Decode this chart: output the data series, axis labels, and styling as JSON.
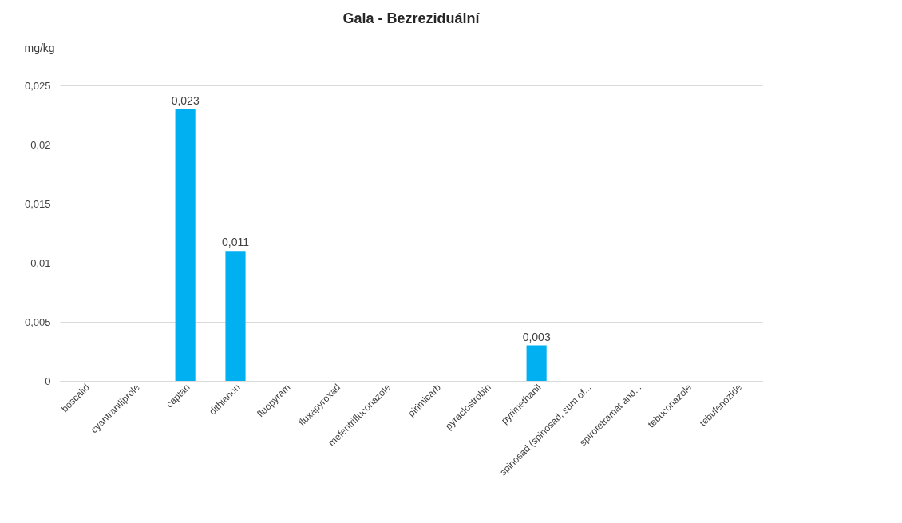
{
  "chart_data": {
    "type": "bar",
    "title": "Gala - Bezreziduální",
    "ylabel": "mg/kg",
    "categories": [
      "boscalid",
      "cyantraniliprole",
      "captan",
      "dithianon",
      "fluopyram",
      "fluxapyroxad",
      "mefentrifluconazole",
      "pirimicarb",
      "pyraclostrobin",
      "pyrimethanil",
      "spinosad (spinosad, sum of...",
      "spirotetramat and...",
      "tebuconazole",
      "tebufenozide"
    ],
    "values": [
      0,
      0,
      0.023,
      0.011,
      0,
      0,
      0,
      0,
      0,
      0.003,
      0,
      0,
      0,
      0
    ],
    "value_labels": [
      null,
      null,
      "0,023",
      "0,011",
      null,
      null,
      null,
      null,
      null,
      "0,003",
      null,
      null,
      null,
      null
    ],
    "color": "#00b0f0",
    "ylim": [
      0,
      0.025
    ],
    "yticks": [
      0,
      {
        "value": 0.005,
        "label": "0,005"
      },
      {
        "value": 0.01,
        "label": "0,01"
      },
      {
        "value": 0.015,
        "label": "0,015"
      },
      {
        "value": 0.02,
        "label": "0,02"
      },
      {
        "value": 0.025,
        "label": "0,025"
      }
    ],
    "grid": "y"
  }
}
